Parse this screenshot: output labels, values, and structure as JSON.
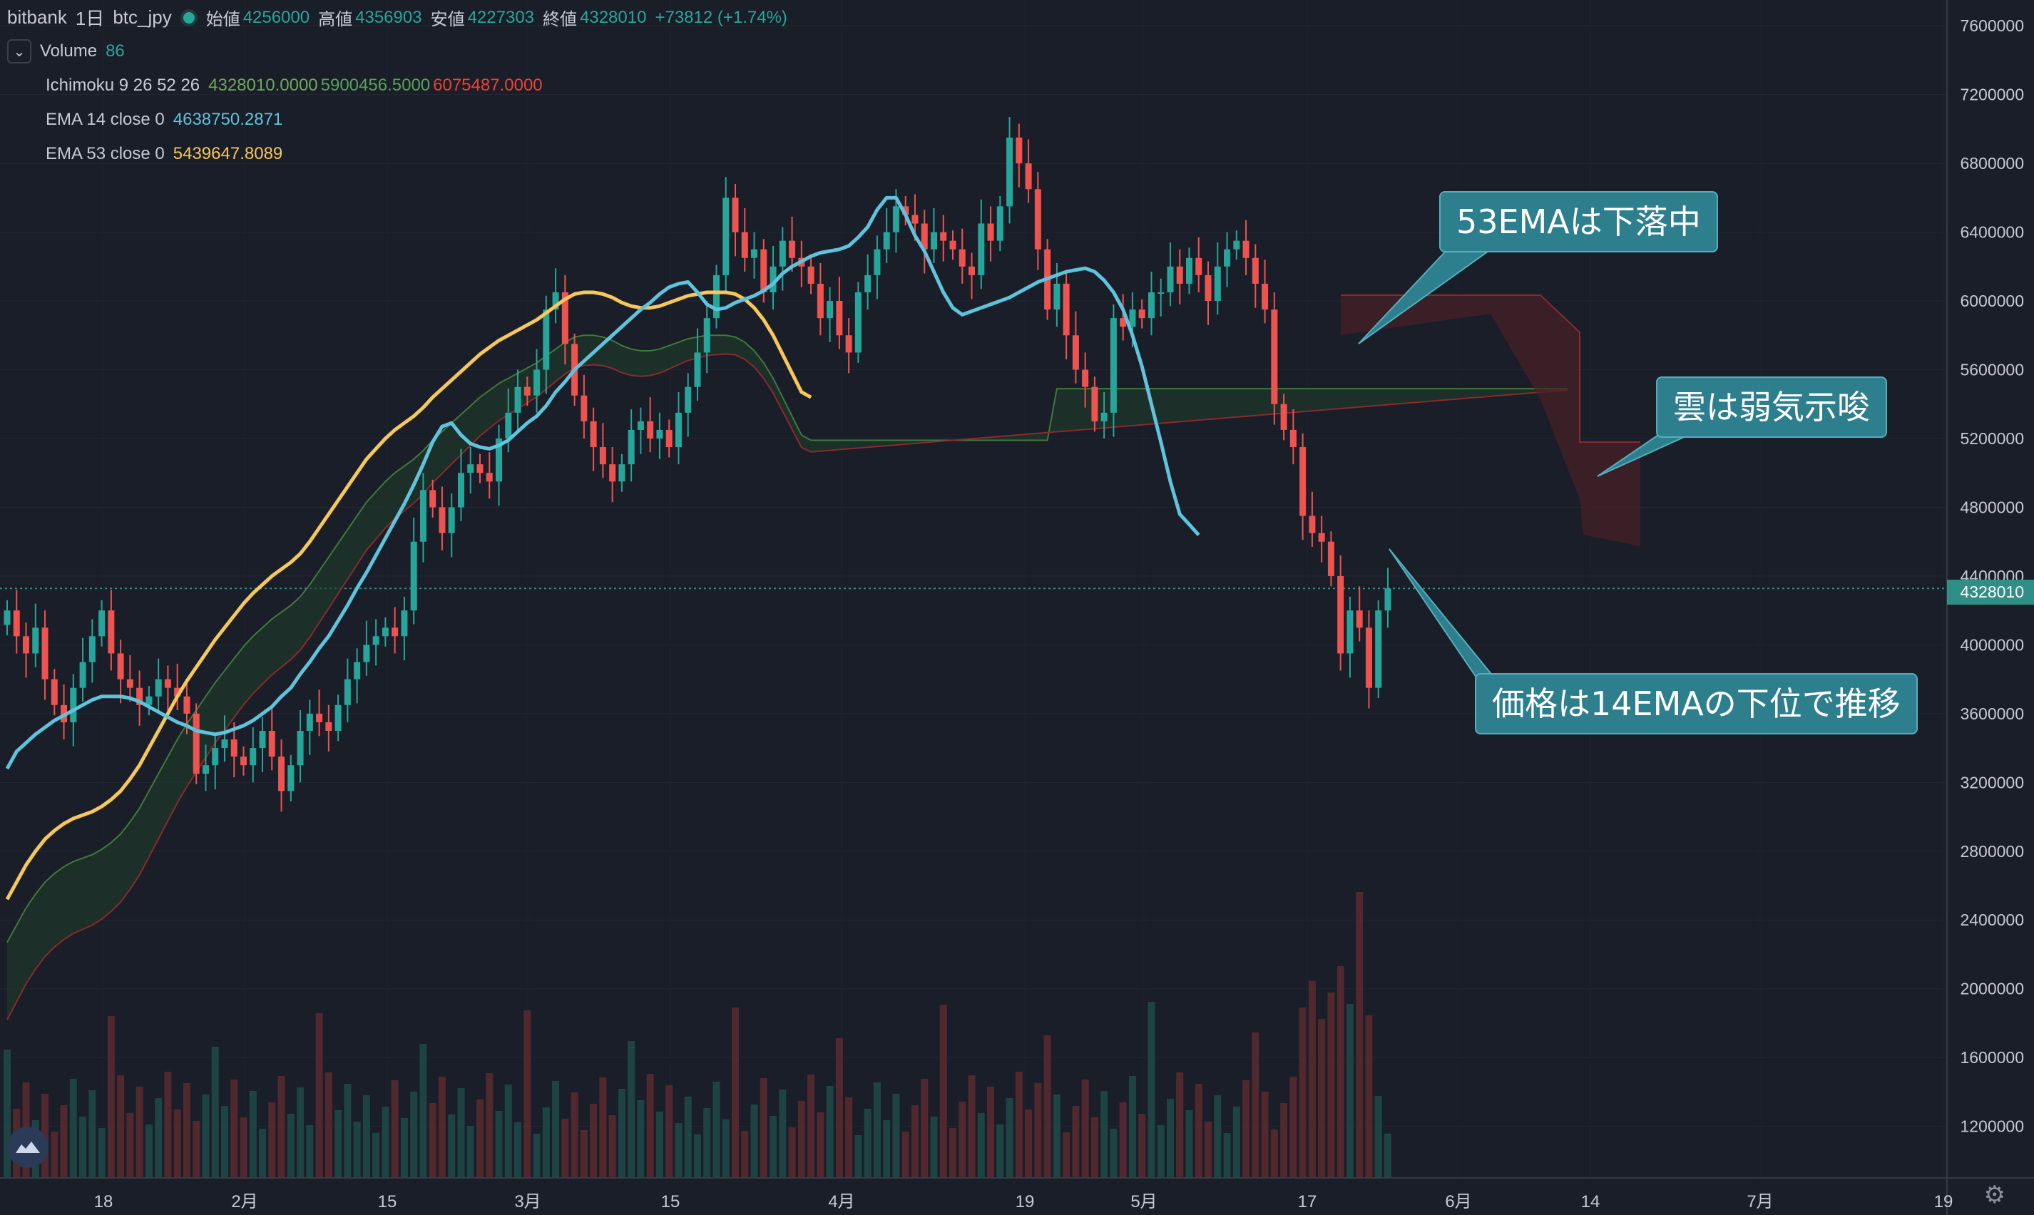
{
  "header": {
    "exchange": "bitbank",
    "interval": "1日",
    "symbol": "btc_jpy",
    "ohlc": [
      {
        "label": "始値",
        "value": "4256000"
      },
      {
        "label": "高値",
        "value": "4356903"
      },
      {
        "label": "安値",
        "value": "4227303"
      },
      {
        "label": "終値",
        "value": "4328010"
      }
    ],
    "change": "+73812 (+1.74%)"
  },
  "indicators": {
    "volume": {
      "label": "Volume",
      "value": "86"
    },
    "ichimoku": {
      "label": "Ichimoku 9 26 52 26",
      "v1": "4328010.0000",
      "v2": "5900456.5000",
      "v3": "6075487.0000"
    },
    "ema14": {
      "label": "EMA 14 close 0",
      "value": "4638750.2871"
    },
    "ema53": {
      "label": "EMA 53 close 0",
      "value": "5439647.8089"
    }
  },
  "annotations": [
    {
      "text": "53EMAは下落中"
    },
    {
      "text": "雲は弱気示唆"
    },
    {
      "text": "価格は14EMAの下位で推移"
    }
  ],
  "price_tag": "4328010",
  "colors": {
    "background": "#1a1e29",
    "up": "#26a69a",
    "down": "#ef5350",
    "ema14": "#5fc3dc",
    "ema53": "#f6c75a",
    "cloud_bull": "#1f3a2a",
    "cloud_bear": "#4a1f26",
    "callout": "#2e7f8e"
  },
  "chart_data": {
    "type": "candlestick",
    "x_tick_labels": [
      "18",
      "2月",
      "15",
      "3月",
      "15",
      "4月",
      "19",
      "5月",
      "17",
      "6月",
      "14",
      "7月",
      "19"
    ],
    "y_tick_labels": [
      "1200000",
      "1600000",
      "2000000",
      "2400000",
      "2800000",
      "3200000",
      "3600000",
      "4000000",
      "4400000",
      "4800000",
      "5200000",
      "5600000",
      "6000000",
      "6400000",
      "6800000",
      "7200000",
      "7600000"
    ],
    "ylim": [
      900000,
      7750000
    ],
    "close": [
      4200000,
      4050000,
      3950000,
      4100000,
      3800000,
      3650000,
      3550000,
      3750000,
      3900000,
      4050000,
      4200000,
      3950000,
      3800000,
      3750000,
      3650000,
      3700000,
      3800000,
      3750000,
      3700000,
      3600000,
      3250000,
      3300000,
      3400000,
      3450000,
      3350000,
      3300000,
      3400000,
      3500000,
      3350000,
      3150000,
      3300000,
      3500000,
      3600000,
      3550000,
      3500000,
      3650000,
      3800000,
      3900000,
      4000000,
      4050000,
      4100000,
      4050000,
      4200000,
      4600000,
      4900000,
      4800000,
      4650000,
      4800000,
      5000000,
      5050000,
      5000000,
      4950000,
      5200000,
      5350000,
      5500000,
      5450000,
      5600000,
      5950000,
      6050000,
      5750000,
      5450000,
      5300000,
      5150000,
      5050000,
      4950000,
      5050000,
      5250000,
      5300000,
      5200000,
      5250000,
      5150000,
      5350000,
      5500000,
      5700000,
      5900000,
      6150000,
      6600000,
      6400000,
      6250000,
      6300000,
      6050000,
      6200000,
      6350000,
      6250000,
      6200000,
      6100000,
      5900000,
      6000000,
      5800000,
      5700000,
      6050000,
      6150000,
      6300000,
      6400000,
      6550000,
      6500000,
      6450000,
      6300000,
      6400000,
      6350000,
      6300000,
      6200000,
      6150000,
      6450000,
      6350000,
      6550000,
      6950000,
      6800000,
      6650000,
      6300000,
      5950000,
      6100000,
      5800000,
      5600000,
      5500000,
      5300000,
      5350000,
      5900000,
      5850000,
      5950000,
      5900000,
      6050000,
      6050000,
      6200000,
      6100000,
      6250000,
      6150000,
      6000000,
      6200000,
      6300000,
      6350000,
      6250000,
      6100000,
      5950000,
      5400000,
      5250000,
      5150000,
      4750000,
      4650000,
      4600000,
      4400000,
      3950000,
      4200000,
      4100000,
      3750000,
      4200000,
      4328010
    ],
    "ema14": [
      3280000,
      3380000,
      3430000,
      3480000,
      3520000,
      3560000,
      3590000,
      3620000,
      3650000,
      3680000,
      3700000,
      3700000,
      3700000,
      3690000,
      3670000,
      3640000,
      3610000,
      3580000,
      3550000,
      3530000,
      3500000,
      3490000,
      3480000,
      3490000,
      3510000,
      3530000,
      3560000,
      3600000,
      3640000,
      3700000,
      3750000,
      3830000,
      3900000,
      3980000,
      4050000,
      4140000,
      4230000,
      4330000,
      4420000,
      4520000,
      4620000,
      4720000,
      4820000,
      4930000,
      5050000,
      5180000,
      5270000,
      5290000,
      5220000,
      5170000,
      5150000,
      5140000,
      5160000,
      5190000,
      5240000,
      5290000,
      5330000,
      5390000,
      5470000,
      5530000,
      5600000,
      5650000,
      5700000,
      5750000,
      5800000,
      5850000,
      5900000,
      5950000,
      5990000,
      6040000,
      6080000,
      6100000,
      6110000,
      6050000,
      5980000,
      5950000,
      5960000,
      5990000,
      6010000,
      6030000,
      6060000,
      6100000,
      6160000,
      6200000,
      6230000,
      6260000,
      6280000,
      6290000,
      6300000,
      6320000,
      6370000,
      6430000,
      6530000,
      6600000,
      6600000,
      6500000,
      6380000,
      6290000,
      6170000,
      6050000,
      5960000,
      5920000,
      5940000,
      5960000,
      5980000,
      6000000,
      6020000,
      6050000,
      6080000,
      6110000,
      6130000,
      6150000,
      6170000,
      6180000,
      6190000,
      6170000,
      6120000,
      6050000,
      5950000,
      5800000,
      5620000,
      5400000,
      5180000,
      4950000,
      4760000,
      4700000,
      4638750
    ],
    "ema53": [
      2520000,
      2620000,
      2720000,
      2800000,
      2870000,
      2920000,
      2960000,
      2990000,
      3010000,
      3030000,
      3060000,
      3100000,
      3150000,
      3220000,
      3300000,
      3400000,
      3500000,
      3600000,
      3700000,
      3790000,
      3870000,
      3950000,
      4030000,
      4100000,
      4170000,
      4240000,
      4300000,
      4350000,
      4400000,
      4440000,
      4480000,
      4530000,
      4600000,
      4680000,
      4760000,
      4840000,
      4920000,
      5000000,
      5080000,
      5140000,
      5200000,
      5250000,
      5290000,
      5330000,
      5380000,
      5440000,
      5490000,
      5540000,
      5590000,
      5640000,
      5690000,
      5730000,
      5770000,
      5800000,
      5830000,
      5860000,
      5890000,
      5930000,
      5970000,
      6010000,
      6040000,
      6050000,
      6050000,
      6040000,
      6020000,
      5990000,
      5970000,
      5960000,
      5960000,
      5970000,
      5990000,
      6010000,
      6030000,
      6040000,
      6050000,
      6050000,
      6050000,
      6040000,
      6010000,
      5960000,
      5890000,
      5800000,
      5690000,
      5580000,
      5470000,
      5439647
    ]
  }
}
